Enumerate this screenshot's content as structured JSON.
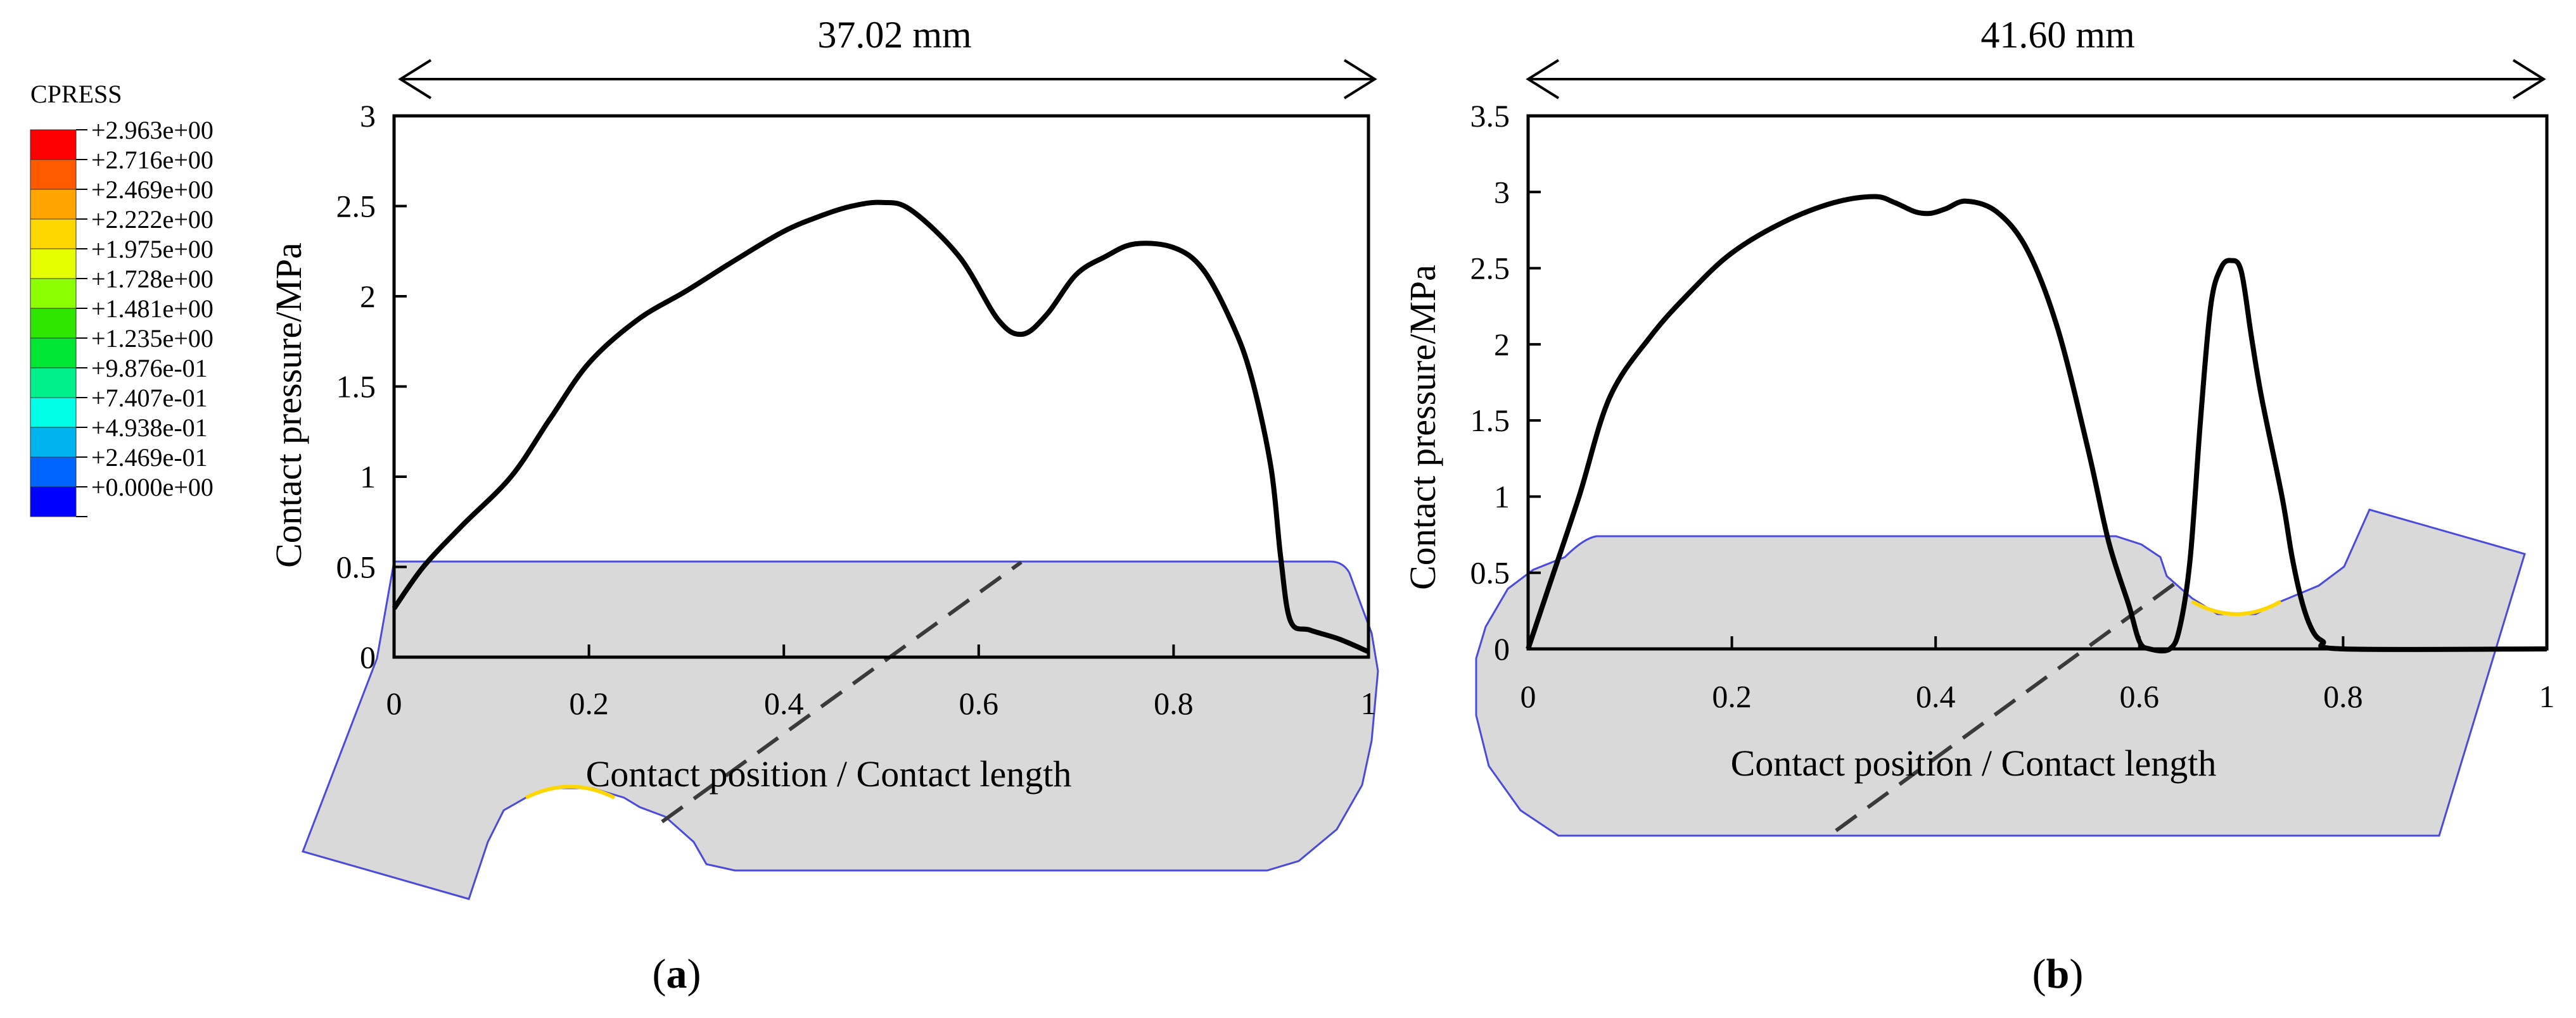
{
  "legend": {
    "title": "CPRESS",
    "entries": [
      {
        "label": "+2.963e+00",
        "color": "#ff0000"
      },
      {
        "label": "+2.716e+00",
        "color": "#ff5a00"
      },
      {
        "label": "+2.469e+00",
        "color": "#ffa500"
      },
      {
        "label": "+2.222e+00",
        "color": "#ffd700"
      },
      {
        "label": "+1.975e+00",
        "color": "#e6ff00"
      },
      {
        "label": "+1.728e+00",
        "color": "#8cff00"
      },
      {
        "label": "+1.481e+00",
        "color": "#2ee600"
      },
      {
        "label": "+1.235e+00",
        "color": "#00e632"
      },
      {
        "label": "+9.876e-01",
        "color": "#00f08c"
      },
      {
        "label": "+7.407e-01",
        "color": "#00ffe6"
      },
      {
        "label": "+4.938e-01",
        "color": "#00b4f0"
      },
      {
        "label": "+2.469e-01",
        "color": "#0064ff"
      },
      {
        "label": "+0.000e+00",
        "color": "#0000ff"
      }
    ]
  },
  "chart_data": [
    {
      "type": "line",
      "panel_label": "a",
      "dimension_label": "37.02 mm",
      "xlabel": "Contact position / Contact length",
      "ylabel": "Contact pressure/MPa",
      "xlim": [
        0,
        1
      ],
      "ylim": [
        0,
        3
      ],
      "xticks": [
        0,
        0.2,
        0.4,
        0.6,
        0.8,
        1
      ],
      "xtick_labels": [
        "0",
        "0.2",
        "0.4",
        "0.6",
        "0.8",
        "1"
      ],
      "yticks": [
        0,
        0.5,
        1,
        1.5,
        2,
        2.5,
        3
      ],
      "ytick_labels": [
        "0",
        "0.5",
        "1",
        "1.5",
        "2",
        "2.5",
        "3"
      ],
      "grid": false,
      "series": [
        {
          "color": "#000000",
          "x": [
            0,
            0.03,
            0.07,
            0.12,
            0.16,
            0.2,
            0.25,
            0.3,
            0.35,
            0.4,
            0.44,
            0.47,
            0.5,
            0.53,
            0.58,
            0.62,
            0.645,
            0.67,
            0.7,
            0.73,
            0.76,
            0.8,
            0.83,
            0.86,
            0.88,
            0.9,
            0.91,
            0.92,
            0.94,
            0.97,
            1.0
          ],
          "y": [
            0.27,
            0.5,
            0.73,
            1.0,
            1.32,
            1.63,
            1.87,
            2.03,
            2.2,
            2.36,
            2.45,
            2.5,
            2.52,
            2.48,
            2.22,
            1.87,
            1.79,
            1.9,
            2.12,
            2.22,
            2.29,
            2.27,
            2.15,
            1.85,
            1.55,
            1.05,
            0.55,
            0.2,
            0.15,
            0.1,
            0.03
          ]
        }
      ]
    },
    {
      "type": "line",
      "panel_label": "b",
      "dimension_label": "41.60 mm",
      "xlabel": "Contact position / Contact length",
      "ylabel": "Contact pressure/MPa",
      "xlim": [
        0,
        1
      ],
      "ylim": [
        0,
        3.5
      ],
      "xticks": [
        0,
        0.2,
        0.4,
        0.6,
        0.8,
        1
      ],
      "xtick_labels": [
        "0",
        "0.2",
        "0.4",
        "0.6",
        "0.8",
        "1"
      ],
      "yticks": [
        0,
        0.5,
        1,
        1.5,
        2,
        2.5,
        3,
        3.5
      ],
      "ytick_labels": [
        "0",
        "0.5",
        "1",
        "1.5",
        "2",
        "2.5",
        "3",
        "3.5"
      ],
      "grid": false,
      "series": [
        {
          "color": "#000000",
          "x": [
            0,
            0.02,
            0.05,
            0.08,
            0.12,
            0.16,
            0.2,
            0.25,
            0.3,
            0.34,
            0.36,
            0.38,
            0.395,
            0.41,
            0.43,
            0.46,
            0.49,
            0.52,
            0.55,
            0.57,
            0.59,
            0.6,
            0.61,
            0.63,
            0.64,
            0.65,
            0.66,
            0.67,
            0.68,
            0.69,
            0.7,
            0.71,
            0.72,
            0.74,
            0.75,
            0.76,
            0.77,
            0.78,
            0.8,
            1.0
          ],
          "y": [
            0.0,
            0.4,
            1.0,
            1.65,
            2.05,
            2.35,
            2.6,
            2.8,
            2.93,
            2.97,
            2.93,
            2.87,
            2.86,
            2.89,
            2.94,
            2.87,
            2.62,
            2.1,
            1.3,
            0.7,
            0.28,
            0.05,
            0.0,
            0.0,
            0.15,
            0.6,
            1.5,
            2.25,
            2.5,
            2.55,
            2.48,
            2.05,
            1.65,
            1.0,
            0.6,
            0.3,
            0.12,
            0.05,
            0.0,
            0.0
          ]
        }
      ]
    }
  ]
}
